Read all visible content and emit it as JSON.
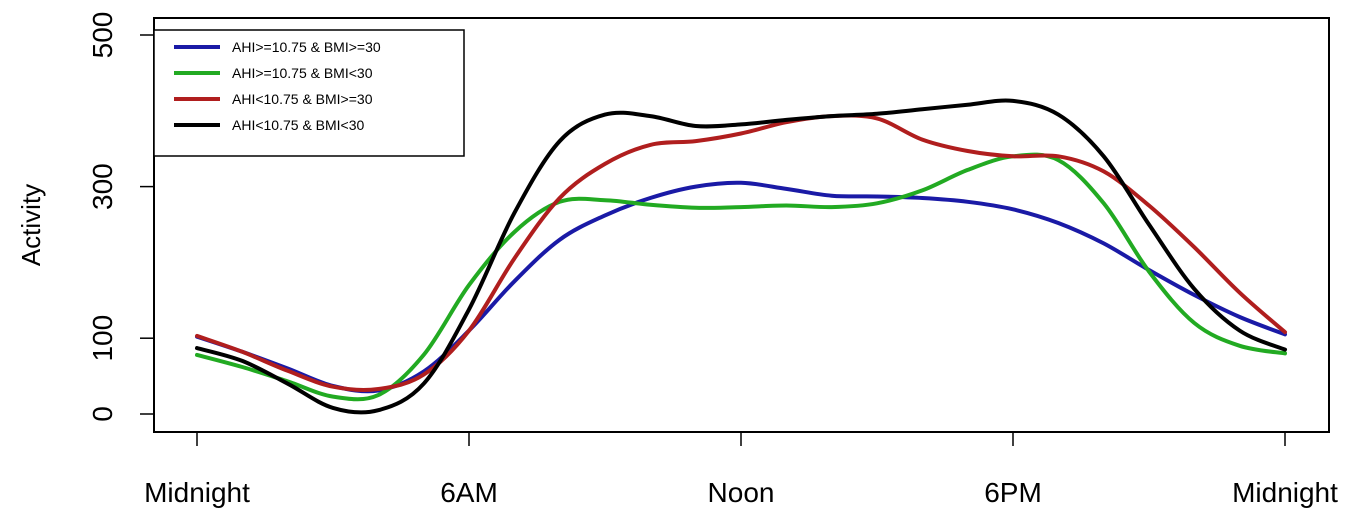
{
  "chart_data": {
    "type": "line",
    "title": "",
    "xlabel": "",
    "ylabel": "Activity",
    "xlim": [
      0,
      24
    ],
    "ylim": [
      0,
      500
    ],
    "x_ticks": [
      {
        "value": 0,
        "label": "Midnight"
      },
      {
        "value": 6,
        "label": "6AM"
      },
      {
        "value": 12,
        "label": "Noon"
      },
      {
        "value": 18,
        "label": "6PM"
      },
      {
        "value": 24,
        "label": "Midnight"
      }
    ],
    "y_ticks": [
      0,
      100,
      300,
      500
    ],
    "grid": false,
    "legend_position": "top-left",
    "series": [
      {
        "name": "AHI>=10.75 & BMI>=30",
        "color": "#1a1aa6",
        "x": [
          0,
          1,
          2,
          3,
          4,
          5,
          6,
          7,
          8,
          9,
          10,
          11,
          12,
          13,
          14,
          15,
          16,
          17,
          18,
          19,
          20,
          21,
          22,
          23,
          24
        ],
        "y": [
          102,
          82,
          60,
          37,
          31,
          56,
          110,
          175,
          230,
          262,
          285,
          300,
          305,
          297,
          288,
          287,
          285,
          280,
          270,
          252,
          225,
          190,
          157,
          128,
          105
        ]
      },
      {
        "name": "AHI>=10.75 & BMI<30",
        "color": "#22aa22",
        "x": [
          0,
          1,
          2,
          3,
          4,
          5,
          6,
          7,
          8,
          9,
          10,
          11,
          12,
          13,
          14,
          15,
          16,
          17,
          18,
          19,
          20,
          21,
          22,
          23,
          24
        ],
        "y": [
          78,
          62,
          43,
          23,
          25,
          78,
          170,
          240,
          280,
          282,
          276,
          272,
          273,
          275,
          273,
          278,
          295,
          322,
          340,
          335,
          278,
          188,
          120,
          90,
          80
        ]
      },
      {
        "name": "AHI<10.75 & BMI>=30",
        "color": "#b01e1e",
        "x": [
          0,
          1,
          2,
          3,
          4,
          5,
          6,
          7,
          8,
          9,
          10,
          11,
          12,
          13,
          14,
          15,
          16,
          17,
          18,
          19,
          20,
          21,
          22,
          23,
          24
        ],
        "y": [
          103,
          82,
          57,
          36,
          33,
          52,
          110,
          205,
          285,
          330,
          355,
          360,
          370,
          385,
          393,
          390,
          362,
          347,
          340,
          340,
          320,
          275,
          220,
          160,
          108
        ]
      },
      {
        "name": "AHI<10.75 & BMI<30",
        "color": "#000000",
        "x": [
          0,
          1,
          2,
          3,
          4,
          5,
          6,
          7,
          8,
          9,
          10,
          11,
          12,
          13,
          14,
          15,
          16,
          17,
          18,
          19,
          20,
          21,
          22,
          23,
          24
        ],
        "y": [
          87,
          70,
          40,
          8,
          5,
          40,
          138,
          265,
          360,
          395,
          393,
          380,
          382,
          388,
          393,
          396,
          402,
          408,
          413,
          395,
          340,
          250,
          165,
          110,
          85
        ]
      }
    ]
  }
}
